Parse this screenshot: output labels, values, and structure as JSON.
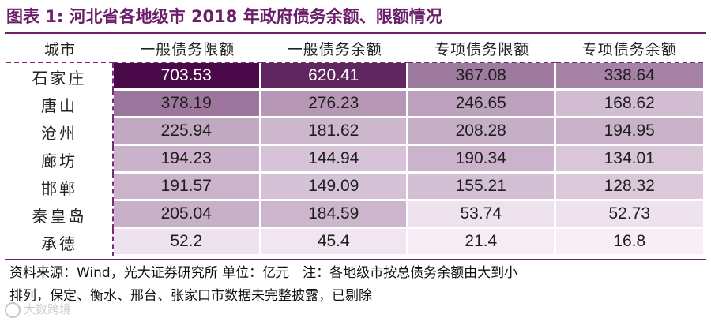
{
  "title": "图表 1: 河北省各地级市 2018 年政府债务余额、限额情况",
  "chart_data": {
    "type": "table",
    "columns": [
      "城市",
      "一般债务限额",
      "一般债务余额",
      "专项债务限额",
      "专项债务余额"
    ],
    "rows": [
      {
        "city": "石家庄",
        "values": [
          "703.53",
          "620.41",
          "367.08",
          "338.64"
        ]
      },
      {
        "city": "唐山",
        "values": [
          "378.19",
          "276.23",
          "246.65",
          "168.62"
        ]
      },
      {
        "city": "沧州",
        "values": [
          "225.94",
          "181.62",
          "208.28",
          "194.95"
        ]
      },
      {
        "city": "廊坊",
        "values": [
          "194.23",
          "144.94",
          "190.34",
          "134.01"
        ]
      },
      {
        "city": "邯郸",
        "values": [
          "191.57",
          "149.09",
          "155.21",
          "128.32"
        ]
      },
      {
        "city": "秦皇岛",
        "values": [
          "205.04",
          "184.59",
          "53.74",
          "52.73"
        ]
      },
      {
        "city": "承德",
        "values": [
          "52.2",
          "45.4",
          "21.4",
          "16.8"
        ]
      }
    ],
    "color_scale": {
      "low": "#f7eef7",
      "high": "#4a0a4a",
      "min": 16.8,
      "max": 703.53
    },
    "header_color": "#ffffff"
  },
  "footer": {
    "line1": "资料来源：Wind，光大证券研究所 单位：亿元　注：各地级市按总债务余额由大到小",
    "line2": "排列，保定、衡水、邢台、张家口市数据未完整披露，已剔除"
  },
  "watermark": "大数跨境",
  "colors": {
    "accent": "#6b1f6b"
  }
}
